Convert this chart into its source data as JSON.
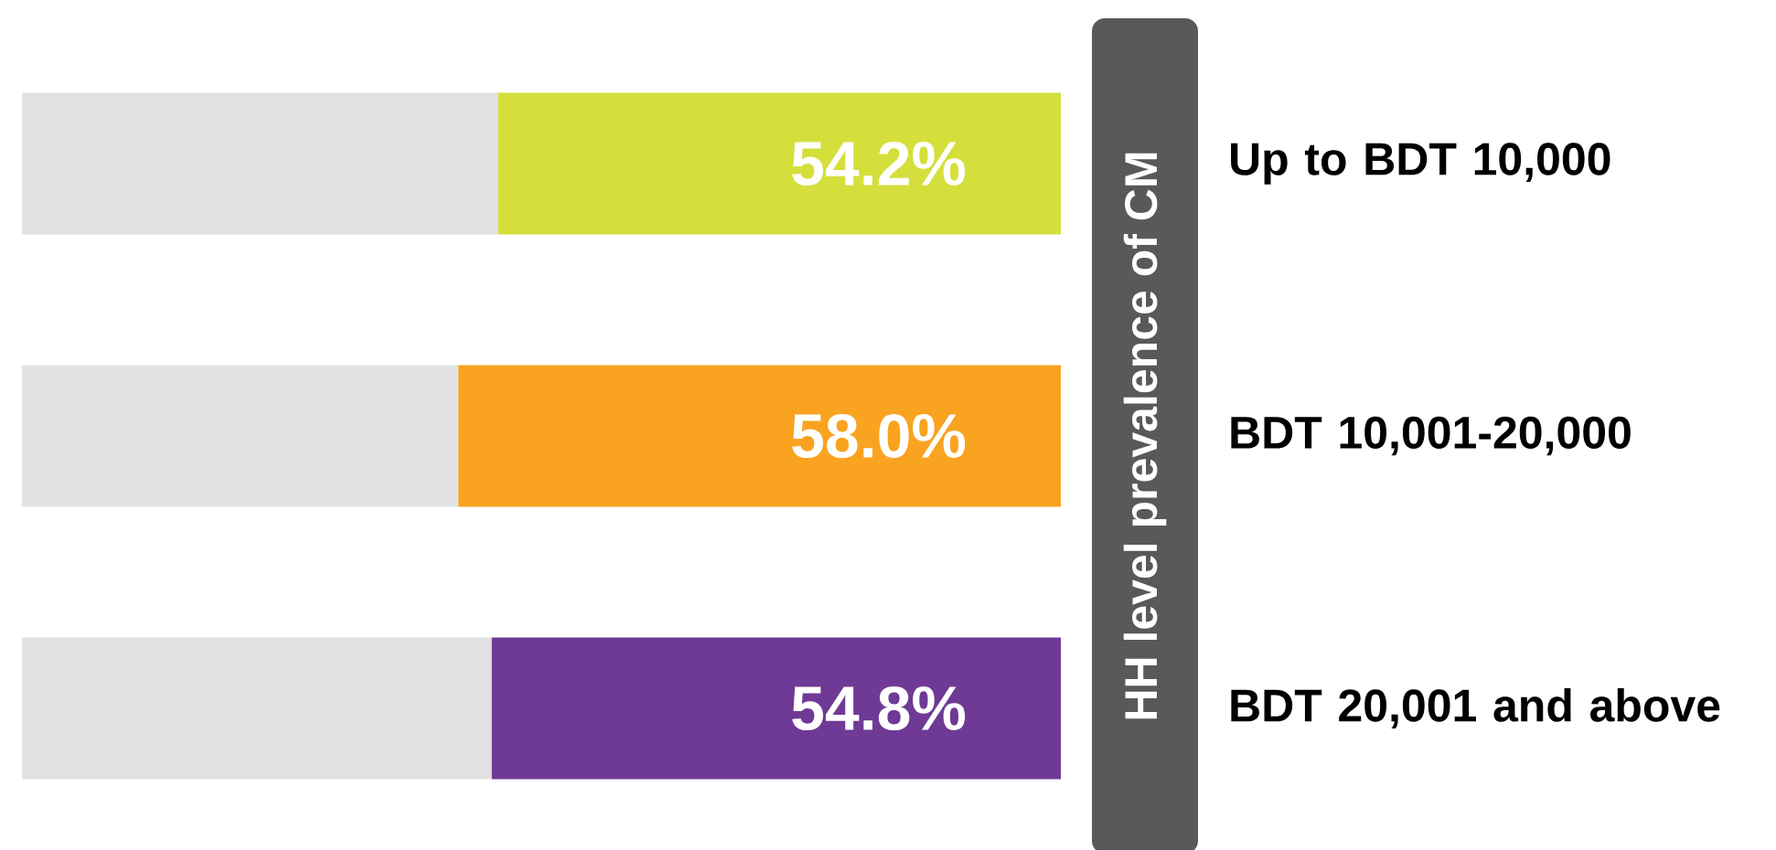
{
  "chart_data": {
    "type": "bar",
    "orientation": "horizontal",
    "stacked": true,
    "ylabel": "HH level prevalence of CM",
    "categories": [
      "Up to BDT 10,000",
      "BDT 10,001-20,000",
      "BDT 20,001 and above"
    ],
    "xlim": [
      100,
      0
    ],
    "tick_labels": "y",
    "series": [
      {
        "colors": [
          "#d4df3c",
          "#f9a321",
          "#6f3a95"
        ],
        "values": [
          54.2,
          58.0,
          54.8
        ],
        "value_labels": [
          "54.2%",
          "58.0%",
          "54.8%"
        ]
      },
      {
        "color": "#e1e2e4",
        "values": [
          45.8,
          42.0,
          45.2
        ]
      }
    ]
  }
}
